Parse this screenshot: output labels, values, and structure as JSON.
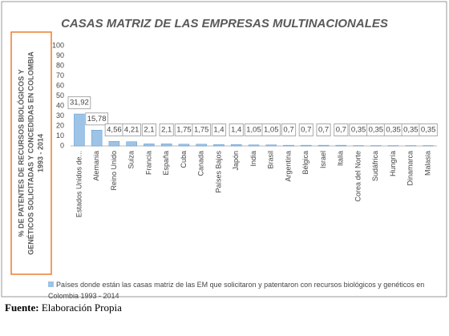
{
  "chart_data": {
    "type": "bar",
    "title": "CASAS MATRIZ DE LAS EMPRESAS MULTINACIONALES",
    "ylabel": [
      "% DE PATENTES DE RECURSOS BIOLÓGICOS Y",
      "GENÉTICOS SOLICITADAS Y CONCEDIDAS EN COLOMBIA",
      "1993 - 2014"
    ],
    "categories": [
      "Estados Unidos de...",
      "Alemania",
      "Reino Unido",
      "Suiza",
      "Francia",
      "España",
      "Cuba",
      "Canada",
      "Países Bajos",
      "Japón",
      "India",
      "Brasil",
      "Argentina",
      "Bélgica",
      "Israel",
      "Italia",
      "Corea del Norte",
      "Sudáfrica",
      "Hungría",
      "Dinamarca",
      "Malasia"
    ],
    "series": [
      {
        "name": "Países donde están las casas matriz de las EM que solicitaron y patentaron con recursos biológicos y genéticos en Colombia 1993 - 2014",
        "color": "#9dc3e6",
        "values": [
          31.92,
          15.78,
          4.56,
          4.21,
          2.1,
          2.1,
          1.75,
          1.75,
          1.4,
          1.4,
          1.05,
          1.05,
          0.7,
          0.7,
          0.7,
          0.7,
          0.35,
          0.35,
          0.35,
          0.35,
          0.35
        ],
        "value_labels": [
          "31,92",
          "15,78",
          "4,56",
          "4,21",
          "2,1",
          "2,1",
          "1,75",
          "1,75",
          "1,4",
          "1,4",
          "1,05",
          "1,05",
          "0,7",
          "0,7",
          "0,7",
          "0,7",
          "0,35",
          "0,35",
          "0,35",
          "0,35",
          "0,35"
        ]
      }
    ],
    "ylim": [
      0,
      100
    ],
    "yticks": [
      0,
      10,
      20,
      30,
      40,
      50,
      60,
      70,
      80,
      90,
      100
    ],
    "grid": false
  },
  "source": {
    "label": "Fuente:",
    "text": "Elaboración Propia"
  }
}
